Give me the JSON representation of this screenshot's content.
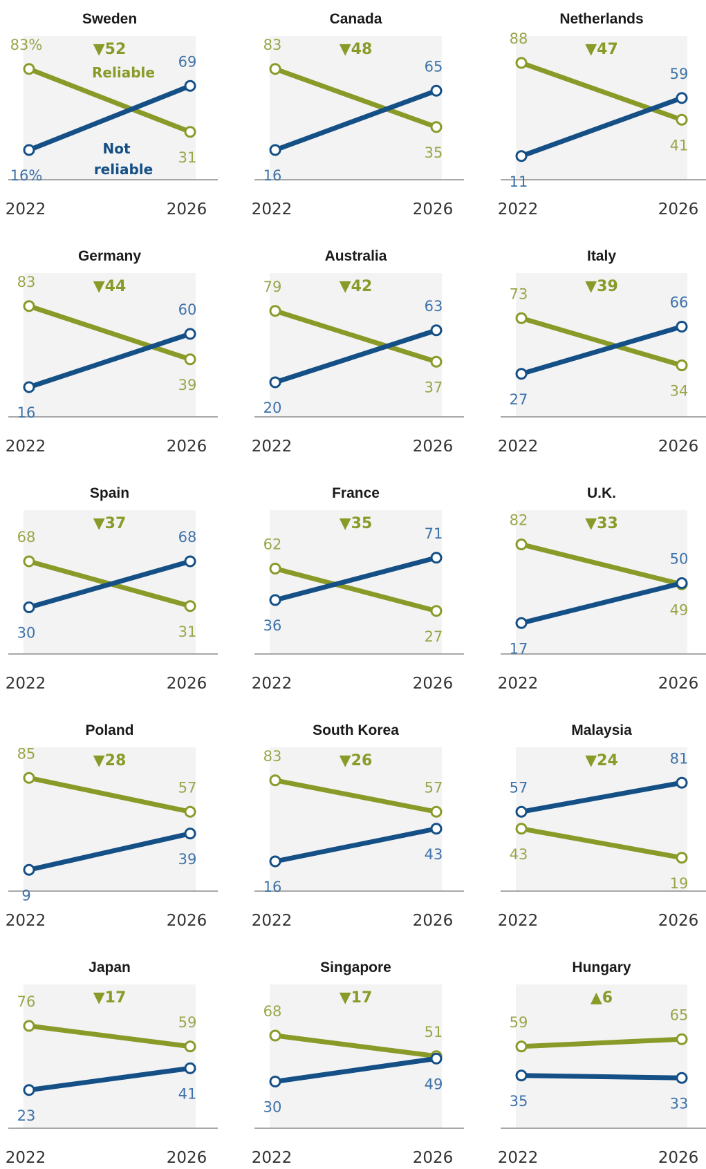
{
  "colors": {
    "reliable": "#8a9a28",
    "reliable_label": "#9aa548",
    "not_reliable": "#144f86",
    "not_reliable_label": "#3e72a8",
    "panel_bg": "#f3f3f3",
    "axis": "#8c8c8c"
  },
  "chart_data": [
    {
      "type": "line",
      "title": "Sweden",
      "categories": [
        "2022",
        "2026"
      ],
      "change": "▼52",
      "series": [
        {
          "name": "Reliable",
          "values": [
            83,
            31
          ]
        },
        {
          "name": "Not reliable",
          "values": [
            16,
            69
          ]
        }
      ],
      "value_labels": {
        "Reliable": [
          "83%",
          "31"
        ],
        "Not reliable": [
          "16%",
          "69"
        ]
      }
    },
    {
      "type": "line",
      "title": "Canada",
      "categories": [
        "2022",
        "2026"
      ],
      "change": "▼48",
      "series": [
        {
          "values": [
            83,
            35
          ]
        },
        {
          "values": [
            16,
            65
          ]
        }
      ]
    },
    {
      "type": "line",
      "title": "Netherlands",
      "categories": [
        "2022",
        "2026"
      ],
      "change": "▼47",
      "series": [
        {
          "values": [
            88,
            41
          ]
        },
        {
          "values": [
            11,
            59
          ]
        }
      ]
    },
    {
      "type": "line",
      "title": "Germany",
      "categories": [
        "2022",
        "2026"
      ],
      "change": "▼44",
      "series": [
        {
          "values": [
            83,
            39
          ]
        },
        {
          "values": [
            16,
            60
          ]
        }
      ]
    },
    {
      "type": "line",
      "title": "Australia",
      "categories": [
        "2022",
        "2026"
      ],
      "change": "▼42",
      "series": [
        {
          "values": [
            79,
            37
          ]
        },
        {
          "values": [
            20,
            63
          ]
        }
      ]
    },
    {
      "type": "line",
      "title": "Italy",
      "categories": [
        "2022",
        "2026"
      ],
      "change": "▼39",
      "series": [
        {
          "values": [
            73,
            34
          ]
        },
        {
          "values": [
            27,
            66
          ]
        }
      ]
    },
    {
      "type": "line",
      "title": "Spain",
      "categories": [
        "2022",
        "2026"
      ],
      "change": "▼37",
      "series": [
        {
          "values": [
            68,
            31
          ]
        },
        {
          "values": [
            30,
            68
          ]
        }
      ]
    },
    {
      "type": "line",
      "title": "France",
      "categories": [
        "2022",
        "2026"
      ],
      "change": "▼35",
      "series": [
        {
          "values": [
            62,
            27
          ]
        },
        {
          "values": [
            36,
            71
          ]
        }
      ]
    },
    {
      "type": "line",
      "title": "U.K.",
      "categories": [
        "2022",
        "2026"
      ],
      "change": "▼33",
      "series": [
        {
          "values": [
            82,
            49
          ]
        },
        {
          "values": [
            17,
            50
          ]
        }
      ]
    },
    {
      "type": "line",
      "title": "Poland",
      "categories": [
        "2022",
        "2026"
      ],
      "change": "▼28",
      "series": [
        {
          "values": [
            85,
            57
          ]
        },
        {
          "values": [
            9,
            39
          ]
        }
      ]
    },
    {
      "type": "line",
      "title": "South Korea",
      "categories": [
        "2022",
        "2026"
      ],
      "change": "▼26",
      "series": [
        {
          "values": [
            83,
            57
          ]
        },
        {
          "values": [
            16,
            43
          ]
        }
      ]
    },
    {
      "type": "line",
      "title": "Malaysia",
      "categories": [
        "2022",
        "2026"
      ],
      "change": "▼24",
      "series": [
        {
          "values": [
            43,
            19
          ]
        },
        {
          "values": [
            57,
            81
          ]
        }
      ]
    },
    {
      "type": "line",
      "title": "Japan",
      "categories": [
        "2022",
        "2026"
      ],
      "change": "▼17",
      "series": [
        {
          "values": [
            76,
            59
          ]
        },
        {
          "values": [
            23,
            41
          ]
        }
      ]
    },
    {
      "type": "line",
      "title": "Singapore",
      "categories": [
        "2022",
        "2026"
      ],
      "change": "▼17",
      "series": [
        {
          "values": [
            68,
            51
          ]
        },
        {
          "values": [
            30,
            49
          ]
        }
      ]
    },
    {
      "type": "line",
      "title": "Hungary",
      "categories": [
        "2022",
        "2026"
      ],
      "change": "▲6",
      "series": [
        {
          "values": [
            59,
            65
          ]
        },
        {
          "values": [
            35,
            33
          ]
        }
      ]
    }
  ]
}
